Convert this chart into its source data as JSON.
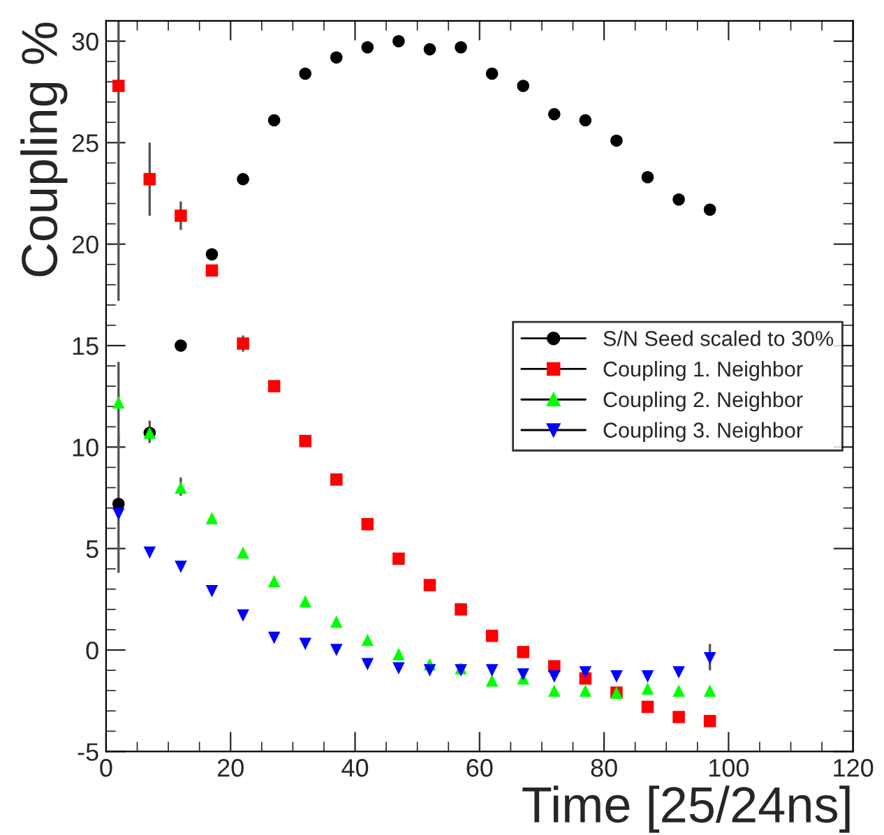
{
  "chart_data": {
    "type": "scatter",
    "xlabel": "Time [25/24ns]",
    "ylabel": "Coupling %",
    "x": [
      2,
      7,
      12,
      17,
      22,
      27,
      32,
      37,
      42,
      47,
      52,
      57,
      62,
      67,
      72,
      77,
      82,
      87,
      92,
      97
    ],
    "series": [
      {
        "name": "S/N Seed scaled to 30%",
        "color": "#000000",
        "marker": "circle",
        "values": [
          7.2,
          10.7,
          15.0,
          19.5,
          23.2,
          26.1,
          28.4,
          29.2,
          29.7,
          30.0,
          29.6,
          29.7,
          28.4,
          27.8,
          26.4,
          26.1,
          25.1,
          23.3,
          22.2,
          21.7
        ],
        "errors": [
          [
            3.8,
            10.6
          ],
          [
            10.2,
            11.3
          ],
          null,
          null,
          null,
          null,
          null,
          null,
          null,
          null,
          null,
          null,
          null,
          null,
          null,
          null,
          null,
          null,
          null,
          null
        ]
      },
      {
        "name": "Coupling 1. Neighbor",
        "color": "#ff0000",
        "marker": "square",
        "values": [
          27.8,
          23.2,
          21.4,
          18.7,
          15.1,
          13.0,
          10.3,
          8.4,
          6.2,
          4.5,
          3.2,
          2.0,
          0.7,
          -0.1,
          -0.8,
          -1.4,
          -2.1,
          -2.8,
          -3.3,
          -3.5
        ],
        "errors": [
          [
            17.2,
            31
          ],
          [
            21.4,
            25.0
          ],
          [
            20.7,
            22.1
          ],
          null,
          [
            14.7,
            15.5
          ],
          null,
          null,
          null,
          null,
          null,
          null,
          null,
          null,
          null,
          null,
          null,
          null,
          null,
          null,
          null
        ]
      },
      {
        "name": "Coupling 2. Neighbor",
        "color": "#00ff00",
        "marker": "triangle",
        "values": [
          12.2,
          10.7,
          8.0,
          6.5,
          4.8,
          3.4,
          2.4,
          1.4,
          0.5,
          -0.2,
          -0.7,
          -0.9,
          -1.5,
          -1.4,
          -2.0,
          -2.0,
          -2.1,
          -1.9,
          -2.0,
          -2.0
        ],
        "errors": [
          [
            10.2,
            14.2
          ],
          null,
          [
            7.6,
            8.5
          ],
          null,
          null,
          null,
          null,
          null,
          null,
          null,
          null,
          null,
          null,
          null,
          null,
          null,
          null,
          null,
          null,
          null
        ]
      },
      {
        "name": "Coupling 3. Neighbor",
        "color": "#0000ff",
        "marker": "triangle_down",
        "values": [
          6.7,
          4.8,
          4.1,
          2.9,
          1.7,
          0.6,
          0.3,
          0.0,
          -0.7,
          -0.9,
          -1.0,
          -1.0,
          -1.0,
          -1.2,
          -1.3,
          -1.1,
          -1.3,
          -1.3,
          -1.1,
          -0.4
        ],
        "errors": [
          null,
          null,
          null,
          null,
          null,
          null,
          null,
          null,
          null,
          null,
          null,
          null,
          null,
          null,
          null,
          null,
          null,
          null,
          null,
          [
            -1.0,
            0.3
          ]
        ]
      }
    ],
    "xlim": [
      0,
      120
    ],
    "ylim": [
      -5,
      31
    ],
    "xticks": [
      0,
      20,
      40,
      60,
      80,
      100,
      120
    ],
    "yticks": [
      -5,
      0,
      5,
      10,
      15,
      20,
      25,
      30
    ],
    "legend": "center right",
    "grid": false
  }
}
